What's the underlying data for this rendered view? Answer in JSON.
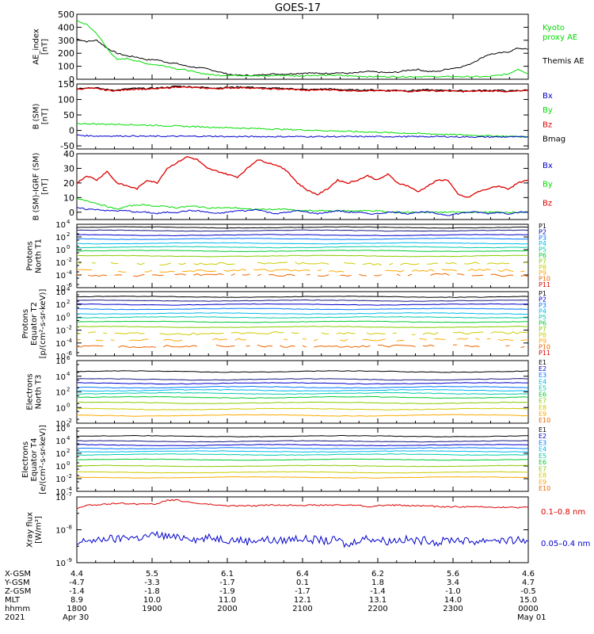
{
  "title": "GOES-17",
  "colors": {
    "black": "#000000",
    "green": "#00dd00",
    "red": "#dd0000",
    "darkred": "#990000",
    "blue": "#0000cc",
    "channels": [
      "#000000",
      "#1a1a80",
      "#0000cc",
      "#0077ff",
      "#00bbee",
      "#00ccaa",
      "#00cc33",
      "#88cc00",
      "#cccc00",
      "#ffaa00",
      "#ee6600",
      "#dd0000",
      "#aa0000"
    ]
  },
  "chart_data": [
    {
      "type": "line",
      "ylabel": [
        "AE_index",
        "[nT]"
      ],
      "ylim": [
        0,
        500
      ],
      "yticks": [
        "500",
        "400",
        "300",
        "200",
        "100",
        "0"
      ],
      "legend": [
        {
          "label": "Kyoto",
          "color": "#00dd00"
        },
        {
          "label": "proxy AE",
          "color": "#00dd00"
        },
        {
          "label": "Themis AE",
          "color": "#000000"
        }
      ],
      "series": [
        {
          "name": "Themis AE",
          "color": "#000000",
          "values": [
            310,
            290,
            300,
            240,
            200,
            180,
            170,
            150,
            150,
            130,
            120,
            100,
            90,
            80,
            60,
            40,
            30,
            30,
            30,
            40,
            40,
            40,
            45,
            50,
            45,
            45,
            50,
            45,
            50,
            60,
            55,
            50,
            55,
            70,
            75,
            60,
            60,
            80,
            90,
            110,
            150,
            190,
            200,
            210,
            240,
            230
          ]
        },
        {
          "name": "Kyoto proxy AE",
          "color": "#00dd00",
          "values": [
            450,
            420,
            350,
            240,
            150,
            160,
            140,
            120,
            110,
            100,
            80,
            70,
            50,
            40,
            30,
            30,
            30,
            30,
            25,
            25,
            30,
            30,
            25,
            30,
            30,
            30,
            30,
            25,
            25,
            20,
            20,
            20,
            20,
            20,
            20,
            20,
            20,
            20,
            20,
            20,
            20,
            20,
            30,
            40,
            80,
            40
          ]
        }
      ]
    },
    {
      "type": "line",
      "ylabel": [
        "B (SM)",
        "[nT]"
      ],
      "ylim": [
        -60,
        150
      ],
      "yticks": [
        "150",
        "100",
        "50",
        "0",
        "-50"
      ],
      "legend": [
        {
          "label": "Bx",
          "color": "#0000cc"
        },
        {
          "label": "By",
          "color": "#00dd00"
        },
        {
          "label": "Bz",
          "color": "#dd0000"
        },
        {
          "label": "Bmag",
          "color": "#000000"
        }
      ],
      "series": [
        {
          "name": "Bmag",
          "color": "#000000",
          "values": [
            135,
            138,
            137,
            132,
            130,
            134,
            136,
            135,
            137,
            139,
            143,
            141,
            140,
            138,
            137,
            139,
            140,
            140,
            138,
            136,
            136,
            135,
            134,
            131,
            133,
            134,
            132,
            131,
            130,
            131,
            130,
            129,
            130,
            128,
            130,
            131,
            129,
            130,
            128,
            128,
            129,
            129,
            130,
            127,
            129,
            130
          ]
        },
        {
          "name": "Bz",
          "color": "#dd0000",
          "values": [
            133,
            136,
            135,
            130,
            128,
            132,
            134,
            133,
            135,
            137,
            141,
            139,
            138,
            136,
            135,
            137,
            138,
            138,
            136,
            134,
            134,
            133,
            132,
            129,
            131,
            132,
            130,
            129,
            128,
            129,
            128,
            127,
            128,
            126,
            128,
            129,
            127,
            128,
            126,
            126,
            127,
            127,
            128,
            125,
            127,
            128
          ]
        },
        {
          "name": "By",
          "color": "#00dd00",
          "values": [
            22,
            22,
            21,
            20,
            20,
            19,
            18,
            17,
            16,
            15,
            14,
            13,
            12,
            11,
            10,
            9,
            8,
            7,
            6,
            5,
            4,
            3,
            2,
            1,
            0,
            -1,
            -2,
            -3,
            -4,
            -5,
            -6,
            -7,
            -8,
            -9,
            -10,
            -11,
            -12,
            -13,
            -14,
            -15,
            -16,
            -17,
            -18,
            -19,
            -20,
            -21
          ]
        },
        {
          "name": "Bx",
          "color": "#0000cc",
          "values": [
            -15,
            -17,
            -18,
            -18,
            -18,
            -18,
            -18,
            -19,
            -19,
            -19,
            -19,
            -19,
            -19,
            -19,
            -19,
            -20,
            -20,
            -20,
            -20,
            -20,
            -20,
            -20,
            -20,
            -20,
            -20,
            -20,
            -20,
            -20,
            -20,
            -20,
            -20,
            -20,
            -20,
            -20,
            -20,
            -20,
            -20,
            -20,
            -21,
            -21,
            -21,
            -21,
            -21,
            -21,
            -21,
            -21
          ]
        }
      ]
    },
    {
      "type": "line",
      "ylabel": [
        "B (SM)-IGRF (SM)",
        "[nT]"
      ],
      "ylim": [
        -5,
        40
      ],
      "yticks": [
        "40",
        "30",
        "20",
        "10",
        "0"
      ],
      "legend": [
        {
          "label": "Bx",
          "color": "#0000cc"
        },
        {
          "label": "By",
          "color": "#00dd00"
        },
        {
          "label": "Bz",
          "color": "#dd0000"
        }
      ],
      "series": [
        {
          "name": "Bz",
          "color": "#dd0000",
          "values": [
            20,
            25,
            22,
            28,
            20,
            18,
            16,
            22,
            20,
            30,
            34,
            38,
            36,
            30,
            28,
            26,
            24,
            30,
            36,
            34,
            32,
            28,
            20,
            15,
            12,
            16,
            22,
            20,
            22,
            25,
            22,
            26,
            20,
            18,
            14,
            18,
            22,
            22,
            12,
            10,
            14,
            16,
            18,
            16,
            20,
            22
          ]
        },
        {
          "name": "By",
          "color": "#00dd00",
          "values": [
            9,
            8,
            6,
            4,
            2,
            4,
            5,
            5,
            4,
            4,
            3,
            4,
            4,
            3,
            3,
            3,
            3,
            2,
            2,
            2,
            2,
            2,
            1,
            1,
            1,
            1,
            1,
            1,
            1,
            1,
            1,
            0,
            0,
            0,
            0,
            0,
            0,
            0,
            0,
            0,
            0,
            0,
            0,
            0,
            0,
            0
          ]
        },
        {
          "name": "Bx",
          "color": "#0000cc",
          "values": [
            3,
            2,
            2,
            1,
            1,
            1,
            0,
            0,
            -1,
            0,
            0,
            1,
            1,
            0,
            -1,
            0,
            1,
            1,
            2,
            0,
            -1,
            0,
            1,
            0,
            -1,
            0,
            1,
            0,
            0,
            -1,
            -1,
            0,
            0,
            -1,
            0,
            0,
            -1,
            -2,
            -1,
            0,
            0,
            -1,
            0,
            -1,
            0,
            0
          ]
        }
      ]
    },
    {
      "type": "line",
      "yscale": "log",
      "ylabel": [
        "Protons",
        "North T1"
      ],
      "ylim_exp": [
        -6,
        4
      ],
      "yticks": [
        {
          "base": "10",
          "exp": "4"
        },
        {
          "base": "10",
          "exp": "2"
        },
        {
          "base": "10",
          "exp": "0"
        },
        {
          "base": "10",
          "exp": "-2"
        },
        {
          "base": "10",
          "exp": "-4"
        },
        {
          "base": "10",
          "exp": "-6"
        }
      ],
      "legend": [
        "P1",
        "P2",
        "P3",
        "P4",
        "P5",
        "P6",
        "P7",
        "P8",
        "P9",
        "P10",
        "P11"
      ],
      "levels_exp": [
        3.5,
        3.0,
        2.3,
        1.7,
        1.0,
        0.4,
        -0.2,
        -1.0,
        -2.2,
        -3.3,
        -4.0
      ]
    },
    {
      "type": "line",
      "yscale": "log",
      "ylabel": [
        "Protons",
        "Equator T2",
        "[p/(cm²-s-sr-keV)]"
      ],
      "ylim_exp": [
        -6,
        4
      ],
      "yticks": [
        {
          "base": "10",
          "exp": "4"
        },
        {
          "base": "10",
          "exp": "2"
        },
        {
          "base": "10",
          "exp": "0"
        },
        {
          "base": "10",
          "exp": "-2"
        },
        {
          "base": "10",
          "exp": "-4"
        },
        {
          "base": "10",
          "exp": "-6"
        }
      ],
      "legend": [
        "P1",
        "P2",
        "P3",
        "P4",
        "P5",
        "P6",
        "P7",
        "P8",
        "P9",
        "P10",
        "P11"
      ],
      "levels_exp": [
        3.2,
        2.6,
        2.0,
        1.3,
        0.6,
        0.0,
        -0.7,
        -1.5,
        -2.5,
        -3.5,
        -4.5
      ]
    },
    {
      "type": "line",
      "yscale": "log",
      "ylabel": [
        "Electrons",
        "North T3"
      ],
      "ylim_exp": [
        -2,
        6
      ],
      "yticks": [
        {
          "base": "10",
          "exp": "6"
        },
        {
          "base": "10",
          "exp": "4"
        },
        {
          "base": "10",
          "exp": "2"
        },
        {
          "base": "10",
          "exp": "0"
        },
        {
          "base": "10",
          "exp": "-2"
        }
      ],
      "legend": [
        "E1",
        "E2",
        "E3",
        "E4",
        "E5",
        "E6",
        "E7",
        "E8",
        "E9",
        "E10"
      ],
      "levels_exp": [
        4.6,
        3.6,
        3.1,
        2.6,
        2.2,
        1.8,
        1.3,
        0.6,
        -0.2,
        -1.0
      ]
    },
    {
      "type": "line",
      "yscale": "log",
      "ylabel": [
        "Electrons",
        "Equator T4",
        "[e/(cm²-s-sr-keV)]"
      ],
      "ylim_exp": [
        -4,
        6
      ],
      "yticks": [
        {
          "base": "10",
          "exp": "6"
        },
        {
          "base": "10",
          "exp": "4"
        },
        {
          "base": "10",
          "exp": "2"
        },
        {
          "base": "10",
          "exp": "0"
        },
        {
          "base": "10",
          "exp": "-2"
        },
        {
          "base": "10",
          "exp": "-4"
        }
      ],
      "legend": [
        "E1",
        "E2",
        "E3",
        "E4",
        "E5",
        "E6",
        "E7",
        "E8",
        "E9",
        "E10"
      ],
      "levels_exp": [
        4.7,
        3.9,
        3.3,
        2.8,
        2.3,
        1.8,
        1.0,
        0.0,
        -1.0,
        -1.8
      ]
    },
    {
      "type": "line",
      "yscale": "log",
      "ylabel": [
        "Xray flux",
        "[W/m²]"
      ],
      "ylim_exp": [
        -9,
        -7
      ],
      "yticks": [
        {
          "base": "10",
          "exp": "-7"
        },
        {
          "base": "10",
          "exp": "-8"
        },
        {
          "base": "10",
          "exp": "-9"
        }
      ],
      "legend": [
        {
          "label": "0.1–0.8 nm",
          "color": "#dd0000"
        },
        {
          "label": "0.05–0.4 nm",
          "color": "#0000cc"
        }
      ],
      "series": [
        {
          "name": "0.1–0.8 nm",
          "color": "#dd0000",
          "exp": [
            -7.35,
            -7.25,
            -7.25,
            -7.22,
            -7.2,
            -7.2,
            -7.22,
            -7.2,
            -7.22,
            -7.1,
            -7.1,
            -7.15,
            -7.2,
            -7.22,
            -7.25,
            -7.27,
            -7.27,
            -7.27,
            -7.27,
            -7.25,
            -7.25,
            -7.25,
            -7.25,
            -7.25,
            -7.25,
            -7.25,
            -7.25,
            -7.25,
            -7.25,
            -7.3,
            -7.27,
            -7.25,
            -7.25,
            -7.27,
            -7.27,
            -7.27,
            -7.3,
            -7.3,
            -7.3,
            -7.3,
            -7.3,
            -7.3,
            -7.32,
            -7.32,
            -7.32,
            -7.32
          ]
        },
        {
          "name": "0.05–0.4 nm",
          "color": "#0000cc",
          "exp": [
            -8.45,
            -8.3,
            -8.35,
            -8.25,
            -8.3,
            -8.2,
            -8.25,
            -8.2,
            -8.15,
            -8.2,
            -8.25,
            -8.2,
            -8.3,
            -8.25,
            -8.25,
            -8.3,
            -8.3,
            -8.35,
            -8.3,
            -8.3,
            -8.35,
            -8.3,
            -8.25,
            -8.3,
            -8.3,
            -8.35,
            -8.3,
            -8.5,
            -8.3,
            -8.25,
            -8.3,
            -8.35,
            -8.3,
            -8.3,
            -8.35,
            -8.3,
            -8.4,
            -8.3,
            -8.3,
            -8.35,
            -8.35,
            -8.3,
            -8.3,
            -8.35,
            -8.3,
            -8.35
          ]
        }
      ]
    }
  ],
  "xaxis": {
    "rows": [
      {
        "label": "X-GSM",
        "values": [
          "4.4",
          "5.5",
          "6.1",
          "6.4",
          "6.2",
          "5.6",
          "4.6"
        ]
      },
      {
        "label": "Y-GSM",
        "values": [
          "-4.7",
          "-3.3",
          "-1.7",
          "0.1",
          "1.8",
          "3.4",
          "4.7"
        ]
      },
      {
        "label": "Z-GSM",
        "values": [
          "-1.4",
          "-1.8",
          "-1.9",
          "-1.7",
          "-1.4",
          "-1.0",
          "-0.5"
        ]
      },
      {
        "label": "MLT",
        "values": [
          "8.9",
          "10.0",
          "11.0",
          "12.1",
          "13.1",
          "14.0",
          "15.0"
        ]
      },
      {
        "label": "hhmm",
        "values": [
          "1800",
          "1900",
          "2000",
          "2100",
          "2200",
          "2300",
          "0000"
        ]
      }
    ],
    "year": "2021",
    "date_start": "Apr 30",
    "date_end": "May 01"
  }
}
